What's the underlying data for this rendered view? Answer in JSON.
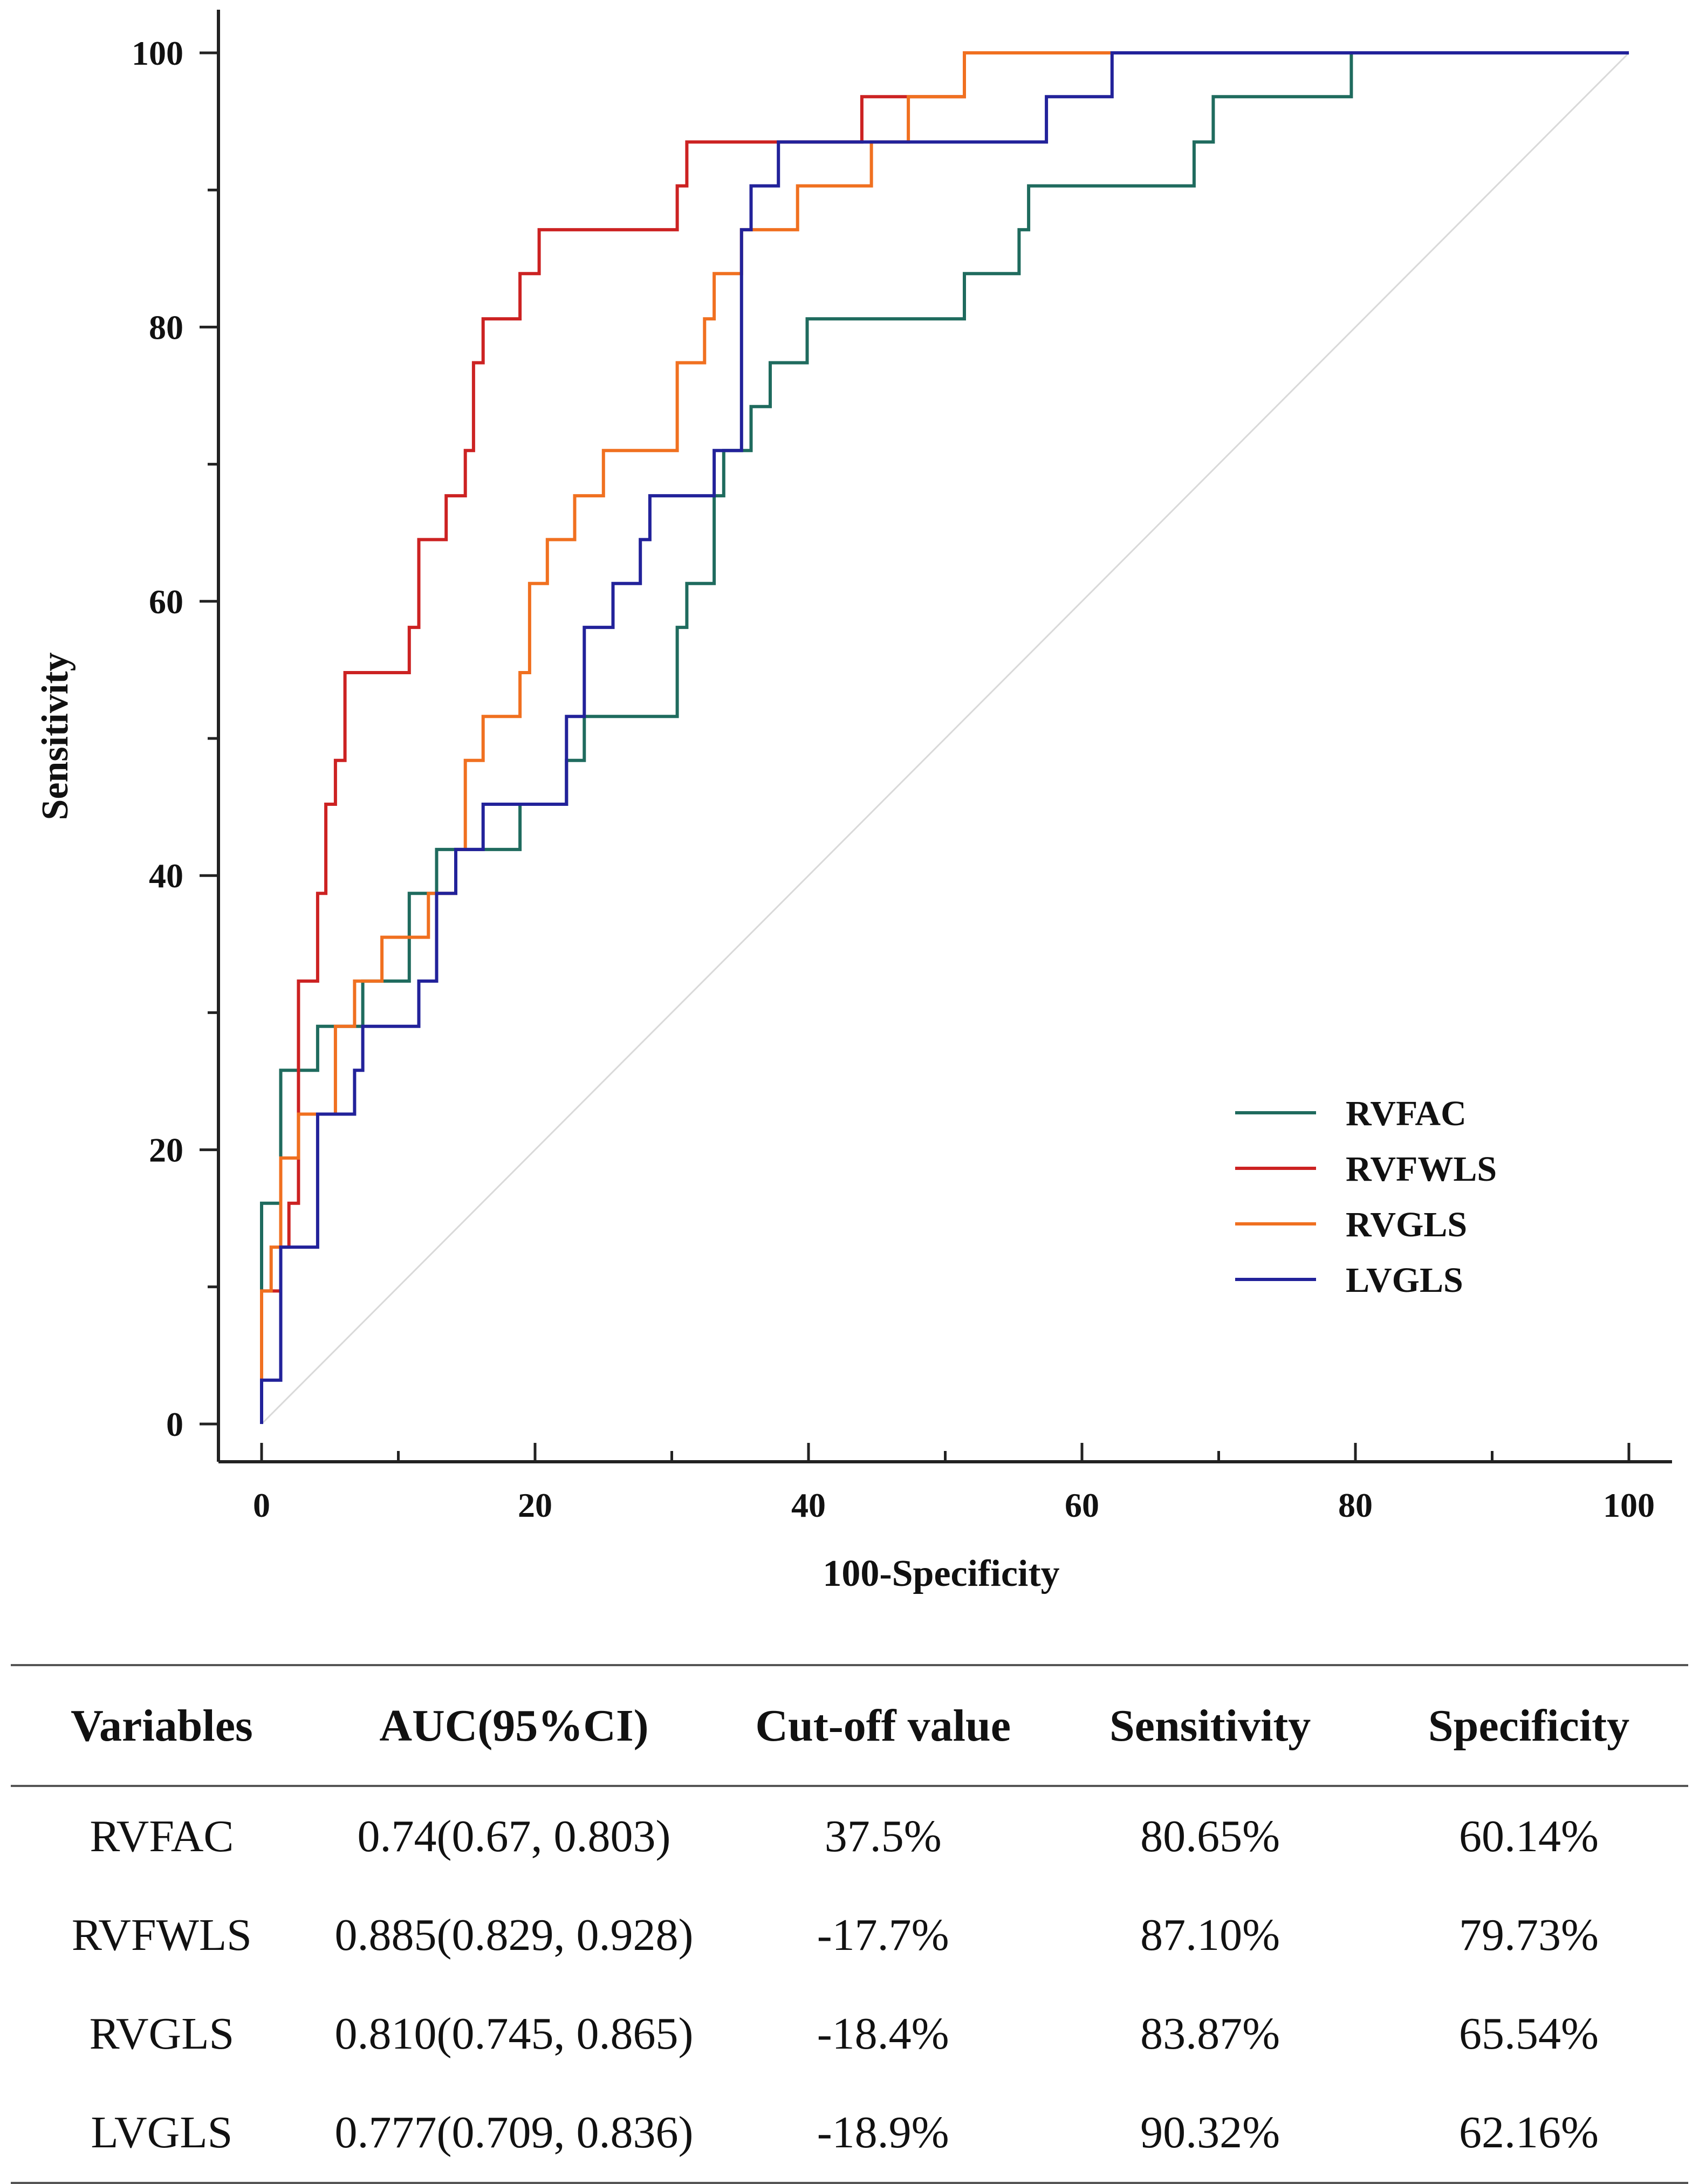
{
  "chart_data": {
    "type": "line",
    "title": "",
    "xlabel": "100-Specificity",
    "ylabel": "Sensitivity",
    "xlim": [
      0,
      100
    ],
    "ylim": [
      0,
      100
    ],
    "xticks": [
      0,
      20,
      40,
      60,
      80,
      100
    ],
    "yticks": [
      0,
      20,
      40,
      60,
      80,
      100
    ],
    "grid": false,
    "legend_position": "bottom-right",
    "reference_line": {
      "x": [
        0,
        100
      ],
      "y": [
        0,
        100
      ],
      "color": "#d9d9d9"
    },
    "series": [
      {
        "name": "RVFAC",
        "color": "#1f6b5e",
        "x": [
          0,
          0,
          1.4,
          1.4,
          2.7,
          2.7,
          4.1,
          4.1,
          6.1,
          6.1,
          7.4,
          7.4,
          9.5,
          9.5,
          10.8,
          10.8,
          12.8,
          12.8,
          14.9,
          14.9,
          16.2,
          16.2,
          18.9,
          18.9,
          22.3,
          22.3,
          23.6,
          23.6,
          30.4,
          30.4,
          31.1,
          31.1,
          33.1,
          33.1,
          33.8,
          33.8,
          35.8,
          35.8,
          37.2,
          37.2,
          39.9,
          39.9,
          51.4,
          51.4,
          55.4,
          55.4,
          56.1,
          56.1,
          68.2,
          68.2,
          69.6,
          69.6,
          79.7,
          79.7,
          100
        ],
        "y": [
          0,
          16.1,
          16.1,
          25.8,
          25.8,
          25.8,
          25.8,
          29.0,
          29.0,
          29.0,
          29.0,
          32.3,
          32.3,
          32.3,
          32.3,
          38.7,
          38.7,
          41.9,
          41.9,
          41.9,
          41.9,
          41.9,
          41.9,
          45.2,
          45.2,
          48.4,
          48.4,
          51.6,
          51.6,
          58.1,
          58.1,
          61.3,
          61.3,
          67.7,
          67.7,
          71.0,
          71.0,
          74.2,
          74.2,
          77.4,
          77.4,
          80.6,
          80.6,
          83.9,
          83.9,
          87.1,
          87.1,
          90.3,
          90.3,
          93.5,
          93.5,
          96.8,
          96.8,
          100,
          100
        ]
      },
      {
        "name": "RVFWLS",
        "color": "#cc2222",
        "x": [
          0,
          0,
          1.4,
          1.4,
          2.0,
          2.0,
          2.7,
          2.7,
          4.1,
          4.1,
          4.7,
          4.7,
          5.4,
          5.4,
          6.1,
          6.1,
          10.8,
          10.8,
          11.5,
          11.5,
          13.5,
          13.5,
          14.9,
          14.9,
          15.5,
          15.5,
          16.2,
          16.2,
          18.9,
          18.9,
          20.3,
          20.3,
          30.4,
          30.4,
          31.1,
          31.1,
          43.9,
          43.9,
          51.4,
          51.4,
          100
        ],
        "y": [
          0,
          9.7,
          9.7,
          12.9,
          12.9,
          16.1,
          16.1,
          32.3,
          32.3,
          38.7,
          38.7,
          45.2,
          45.2,
          48.4,
          48.4,
          54.8,
          54.8,
          58.1,
          58.1,
          64.5,
          64.5,
          67.7,
          67.7,
          71.0,
          71.0,
          77.4,
          77.4,
          80.6,
          80.6,
          83.9,
          83.9,
          87.1,
          87.1,
          90.3,
          90.3,
          93.5,
          93.5,
          96.8,
          96.8,
          100,
          100
        ]
      },
      {
        "name": "RVGLS",
        "color": "#f07020",
        "x": [
          0,
          0,
          0.7,
          0.7,
          1.4,
          1.4,
          2.7,
          2.7,
          4.1,
          4.1,
          5.4,
          5.4,
          6.8,
          6.8,
          8.8,
          8.8,
          12.2,
          12.2,
          14.2,
          14.2,
          14.9,
          14.9,
          16.2,
          16.2,
          18.9,
          18.9,
          19.6,
          19.6,
          20.9,
          20.9,
          22.9,
          22.9,
          25.0,
          25.0,
          30.4,
          30.4,
          32.4,
          32.4,
          33.1,
          33.1,
          35.1,
          35.1,
          39.2,
          39.2,
          44.6,
          44.6,
          46.6,
          46.6,
          47.3,
          47.3,
          51.4,
          51.4,
          57.4,
          57.4,
          62.2,
          62.2,
          100
        ],
        "y": [
          3.2,
          9.7,
          9.7,
          12.9,
          12.9,
          19.4,
          19.4,
          22.6,
          22.6,
          22.6,
          22.6,
          29.0,
          29.0,
          32.3,
          32.3,
          35.5,
          35.5,
          38.7,
          38.7,
          41.9,
          41.9,
          48.4,
          48.4,
          51.6,
          51.6,
          54.8,
          54.8,
          61.3,
          61.3,
          64.5,
          64.5,
          67.7,
          67.7,
          71.0,
          71.0,
          77.4,
          77.4,
          80.6,
          80.6,
          83.9,
          83.9,
          87.1,
          87.1,
          90.3,
          90.3,
          93.5,
          93.5,
          93.5,
          93.5,
          96.8,
          96.8,
          100,
          100,
          100,
          100,
          100,
          100
        ]
      },
      {
        "name": "LVGLS",
        "color": "#22229a",
        "x": [
          0,
          0,
          1.4,
          1.4,
          2.0,
          2.0,
          4.1,
          4.1,
          6.8,
          6.8,
          7.4,
          7.4,
          11.5,
          11.5,
          12.8,
          12.8,
          14.2,
          14.2,
          16.2,
          16.2,
          22.3,
          22.3,
          23.6,
          23.6,
          25.7,
          25.7,
          27.7,
          27.7,
          28.4,
          28.4,
          33.1,
          33.1,
          35.1,
          35.1,
          35.8,
          35.8,
          37.8,
          37.8,
          44.6,
          44.6,
          57.4,
          57.4,
          62.2,
          62.2,
          100
        ],
        "y": [
          0,
          3.2,
          3.2,
          12.9,
          12.9,
          12.9,
          12.9,
          22.6,
          22.6,
          25.8,
          25.8,
          29.0,
          29.0,
          32.3,
          32.3,
          38.7,
          38.7,
          41.9,
          41.9,
          45.2,
          45.2,
          51.6,
          51.6,
          58.1,
          58.1,
          61.3,
          61.3,
          64.5,
          64.5,
          67.7,
          67.7,
          71.0,
          71.0,
          87.1,
          87.1,
          90.3,
          90.3,
          93.5,
          93.5,
          93.5,
          93.5,
          96.8,
          96.8,
          100,
          100
        ]
      }
    ]
  },
  "table": {
    "headers": [
      "Variables",
      "AUC(95%CI)",
      "Cut-off value",
      "Sensitivity",
      "Specificity"
    ],
    "rows": [
      [
        "RVFAC",
        "0.74(0.67, 0.803)",
        "37.5%",
        "80.65%",
        "60.14%"
      ],
      [
        "RVFWLS",
        "0.885(0.829, 0.928)",
        "-17.7%",
        "87.10%",
        "79.73%"
      ],
      [
        "RVGLS",
        "0.810(0.745, 0.865)",
        "-18.4%",
        "83.87%",
        "65.54%"
      ],
      [
        "LVGLS",
        "0.777(0.709, 0.836)",
        "-18.9%",
        "90.32%",
        "62.16%"
      ]
    ]
  }
}
